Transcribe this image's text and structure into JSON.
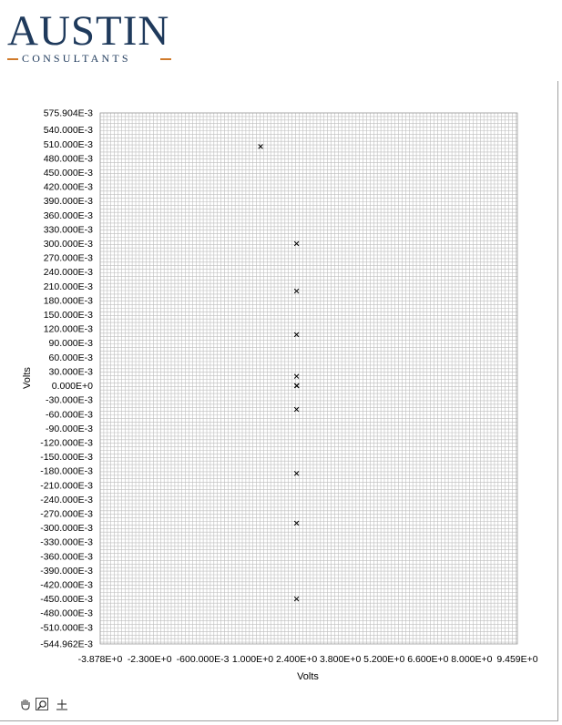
{
  "logo": {
    "main": "AUSTIN",
    "sub": "CONSULTANTS",
    "accent_color": "#d07a2a",
    "brand_color": "#1f3a5c"
  },
  "toolbar": [
    {
      "icon": "hand-pan-icon"
    },
    {
      "icon": "zoom-icon"
    },
    {
      "icon": "crosshair-cursor-icon"
    }
  ],
  "chart_data": {
    "type": "scatter",
    "xlabel": "Volts",
    "ylabel": "Volts",
    "xlim": [
      -3.878,
      9.459
    ],
    "ylim": [
      -0.544962,
      0.575904
    ],
    "x_tick_values": [
      -3.878,
      -2.3,
      -0.6,
      1.0,
      2.4,
      3.8,
      5.2,
      6.6,
      8.0,
      9.459
    ],
    "x_tick_labels": [
      "-3.878E+0",
      "-2.300E+0",
      "-600.000E-3",
      "1.000E+0",
      "2.400E+0",
      "3.800E+0",
      "5.200E+0",
      "6.600E+0",
      "8.000E+0",
      "9.459E+0"
    ],
    "y_tick_values": [
      0.575904,
      0.54,
      0.51,
      0.48,
      0.45,
      0.42,
      0.39,
      0.36,
      0.33,
      0.3,
      0.27,
      0.24,
      0.21,
      0.18,
      0.15,
      0.12,
      0.09,
      0.06,
      0.03,
      0.0,
      -0.03,
      -0.06,
      -0.09,
      -0.12,
      -0.15,
      -0.18,
      -0.21,
      -0.24,
      -0.27,
      -0.3,
      -0.33,
      -0.36,
      -0.39,
      -0.42,
      -0.45,
      -0.48,
      -0.51,
      -0.544962
    ],
    "y_tick_labels": [
      "575.904E-3",
      "540.000E-3",
      "510.000E-3",
      "480.000E-3",
      "450.000E-3",
      "420.000E-3",
      "390.000E-3",
      "360.000E-3",
      "330.000E-3",
      "300.000E-3",
      "270.000E-3",
      "240.000E-3",
      "210.000E-3",
      "180.000E-3",
      "150.000E-3",
      "120.000E-3",
      "90.000E-3",
      "60.000E-3",
      "30.000E-3",
      "0.000E+0",
      "-30.000E-3",
      "-60.000E-3",
      "-90.000E-3",
      "-120.000E-3",
      "-150.000E-3",
      "-180.000E-3",
      "-210.000E-3",
      "-240.000E-3",
      "-270.000E-3",
      "-300.000E-3",
      "-330.000E-3",
      "-360.000E-3",
      "-390.000E-3",
      "-420.000E-3",
      "-450.000E-3",
      "-480.000E-3",
      "-510.000E-3",
      "-544.962E-3"
    ],
    "grid": true,
    "marker": "x",
    "points": [
      {
        "x": 1.25,
        "y": 0.505
      },
      {
        "x": 2.4,
        "y": 0.3
      },
      {
        "x": 2.4,
        "y": 0.2
      },
      {
        "x": 2.4,
        "y": 0.108
      },
      {
        "x": 2.4,
        "y": 0.02
      },
      {
        "x": 2.4,
        "y": 0.0
      },
      {
        "x": 2.41,
        "y": 0.0
      },
      {
        "x": 2.4,
        "y": -0.05
      },
      {
        "x": 2.4,
        "y": -0.185
      },
      {
        "x": 2.4,
        "y": -0.29
      },
      {
        "x": 2.4,
        "y": -0.45
      }
    ]
  }
}
